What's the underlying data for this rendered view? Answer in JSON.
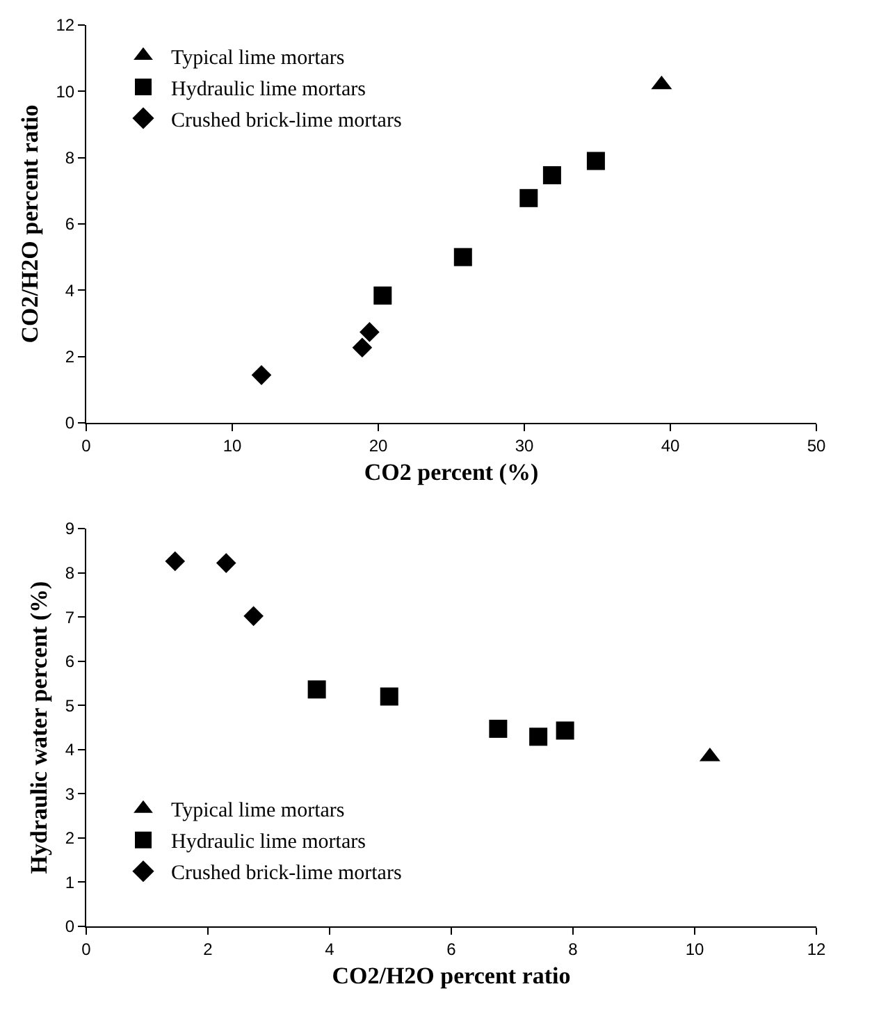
{
  "chart_data": [
    {
      "type": "scatter",
      "xlabel": "CO2 percent (%)",
      "ylabel": "CO2/H2O percent ratio",
      "xlim": [
        0,
        50
      ],
      "xticks": [
        0,
        10,
        20,
        30,
        40,
        50
      ],
      "ylim": [
        0,
        12
      ],
      "yticks": [
        0,
        2,
        4,
        6,
        8,
        10,
        12
      ],
      "grid": false,
      "legend": "top left",
      "series": [
        {
          "name": "Typical lime mortars",
          "color": "#000000",
          "marker": "triangle",
          "x": [
            39.4
          ],
          "values": [
            10.2
          ]
        },
        {
          "name": "Hydraulic lime mortars",
          "color": "#000000",
          "marker": "square",
          "x": [
            20.3,
            25.8,
            30.3,
            31.9,
            34.9
          ],
          "values": [
            3.84,
            5.0,
            6.78,
            7.47,
            7.9
          ]
        },
        {
          "name": "Crushed brick-lime mortars",
          "color": "#000000",
          "marker": "diamond",
          "x": [
            12.0,
            18.9,
            19.4
          ],
          "values": [
            1.44,
            2.27,
            2.74
          ]
        }
      ]
    },
    {
      "type": "scatter",
      "xlabel": "CO2/H2O percent ratio",
      "ylabel": "Hydraulic water percent (%)",
      "xlim": [
        0,
        12
      ],
      "xticks": [
        0,
        2,
        4,
        6,
        8,
        10,
        12
      ],
      "ylim": [
        0,
        9
      ],
      "yticks": [
        0,
        1,
        2,
        3,
        4,
        5,
        6,
        7,
        8,
        9
      ],
      "grid": false,
      "legend": "bottom left",
      "series": [
        {
          "name": "Typical lime mortars",
          "color": "#000000",
          "marker": "triangle",
          "x": [
            10.25
          ],
          "values": [
            3.84
          ]
        },
        {
          "name": "Hydraulic lime mortars",
          "color": "#000000",
          "marker": "square",
          "x": [
            3.79,
            4.98,
            6.77,
            7.43,
            7.87
          ],
          "values": [
            5.36,
            5.2,
            4.47,
            4.29,
            4.43
          ]
        },
        {
          "name": "Crushed brick-lime mortars",
          "color": "#000000",
          "marker": "diamond",
          "x": [
            1.46,
            2.3,
            2.75
          ],
          "values": [
            8.26,
            8.22,
            7.02
          ]
        }
      ]
    }
  ]
}
